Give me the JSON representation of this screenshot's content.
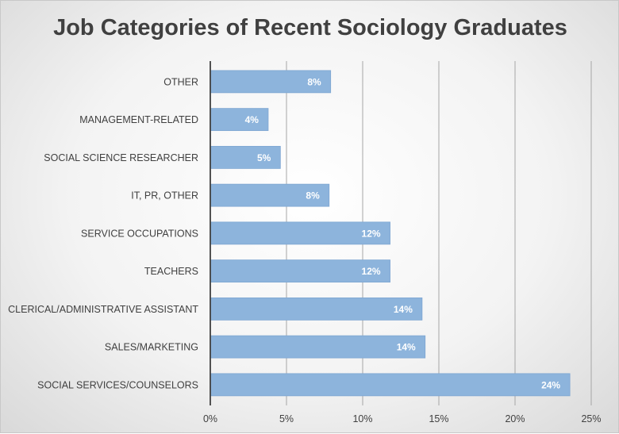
{
  "chart_data": {
    "type": "bar",
    "orientation": "horizontal",
    "title": "Job Categories of Recent Sociology Graduates",
    "xlabel": "",
    "ylabel": "",
    "categories": [
      "OTHER",
      "MANAGEMENT-RELATED",
      "SOCIAL SCIENCE RESEARCHER",
      "IT, PR, OTHER",
      "SERVICE OCCUPATIONS",
      "TEACHERS",
      "CLERICAL/ADMINISTRATIVE ASSISTANT",
      "SALES/MARKETING",
      "SOCIAL SERVICES/COUNSELORS"
    ],
    "values": [
      7.9,
      3.8,
      4.6,
      7.8,
      11.8,
      11.8,
      13.9,
      14.1,
      23.6
    ],
    "data_labels": [
      "8%",
      "4%",
      "5%",
      "8%",
      "12%",
      "12%",
      "14%",
      "14%",
      "24%"
    ],
    "xlim": [
      0,
      25
    ],
    "xticks": [
      0,
      5,
      10,
      15,
      20,
      25
    ],
    "xtick_labels": [
      "0%",
      "5%",
      "10%",
      "15%",
      "20%",
      "25%"
    ],
    "grid": "vertical",
    "legend": "none",
    "colors": {
      "bar": "#8db4dc",
      "bar_edge": "#7ea6d2",
      "grid": "#a6a6a6",
      "axis": "#404040",
      "text": "#404040"
    }
  }
}
